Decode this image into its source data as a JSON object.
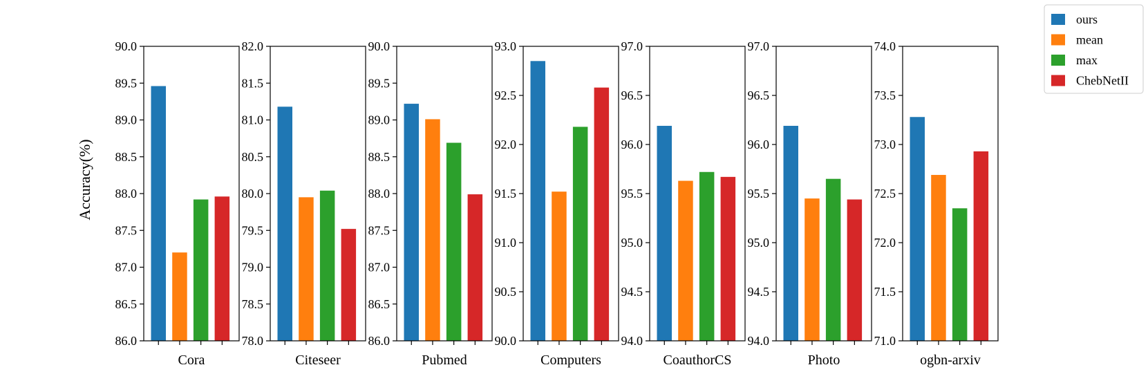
{
  "chart_data": {
    "type": "bar",
    "ylabel": "Accuracy(%)",
    "series_names": [
      "ours",
      "mean",
      "max",
      "ChebNetII"
    ],
    "colors": [
      "#1f77b4",
      "#ff7f0e",
      "#2ca02c",
      "#d62728"
    ],
    "legend": {
      "items": [
        {
          "label": "ours",
          "color": "#1f77b4"
        },
        {
          "label": "mean",
          "color": "#ff7f0e"
        },
        {
          "label": "max",
          "color": "#2ca02c"
        },
        {
          "label": "ChebNetII",
          "color": "#d62728"
        }
      ],
      "location": "top-right"
    },
    "panels": [
      {
        "dataset": "Cora",
        "ylim": [
          86.0,
          90.0
        ],
        "yticks": [
          "86.0",
          "86.5",
          "87.0",
          "87.5",
          "88.0",
          "88.5",
          "89.0",
          "89.5",
          "90.0"
        ],
        "values": [
          89.46,
          87.2,
          87.92,
          87.96
        ]
      },
      {
        "dataset": "Citeseer",
        "ylim": [
          78.0,
          82.0
        ],
        "yticks": [
          "78.0",
          "78.5",
          "79.0",
          "79.5",
          "80.0",
          "80.5",
          "81.0",
          "81.5",
          "82.0"
        ],
        "values": [
          81.18,
          79.95,
          80.04,
          79.52
        ]
      },
      {
        "dataset": "Pubmed",
        "ylim": [
          86.0,
          90.0
        ],
        "yticks": [
          "86.0",
          "86.5",
          "87.0",
          "87.5",
          "88.0",
          "88.5",
          "89.0",
          "89.5",
          "90.0"
        ],
        "values": [
          89.22,
          89.01,
          88.69,
          87.99
        ]
      },
      {
        "dataset": "Computers",
        "ylim": [
          90.0,
          93.0
        ],
        "yticks": [
          "90.0",
          "90.5",
          "91.0",
          "91.5",
          "92.0",
          "92.5",
          "93.0"
        ],
        "values": [
          92.85,
          91.52,
          92.18,
          92.58
        ]
      },
      {
        "dataset": "CoauthorCS",
        "ylim": [
          94.0,
          97.0
        ],
        "yticks": [
          "94.0",
          "94.5",
          "95.0",
          "95.5",
          "96.0",
          "96.5",
          "97.0"
        ],
        "values": [
          96.19,
          95.63,
          95.72,
          95.67
        ]
      },
      {
        "dataset": "Photo",
        "ylim": [
          94.0,
          97.0
        ],
        "yticks": [
          "94.0",
          "94.5",
          "95.0",
          "95.5",
          "96.0",
          "96.5",
          "97.0"
        ],
        "values": [
          96.19,
          95.45,
          95.65,
          95.44
        ]
      },
      {
        "dataset": "ogbn-arxiv",
        "ylim": [
          71.0,
          74.0
        ],
        "yticks": [
          "71.0",
          "71.5",
          "72.0",
          "72.5",
          "73.0",
          "73.5",
          "74.0"
        ],
        "values": [
          73.28,
          72.69,
          72.35,
          72.93
        ]
      }
    ]
  }
}
